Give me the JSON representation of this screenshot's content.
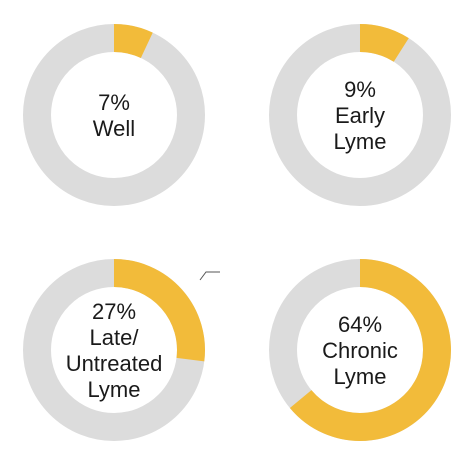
{
  "chart_data": [
    {
      "type": "pie",
      "style": "donut",
      "value_percent": 7,
      "value_label": "7%",
      "category_lines": [
        "Well"
      ],
      "colors": {
        "highlight": "#f2bb3a",
        "remainder": "#dcdcdc"
      }
    },
    {
      "type": "pie",
      "style": "donut",
      "value_percent": 9,
      "value_label": "9%",
      "category_lines": [
        "Early",
        "Lyme"
      ],
      "colors": {
        "highlight": "#f2bb3a",
        "remainder": "#dcdcdc"
      }
    },
    {
      "type": "pie",
      "style": "donut",
      "value_percent": 27,
      "value_label": "27%",
      "category_lines": [
        "Late/",
        "Untreated",
        "Lyme"
      ],
      "colors": {
        "highlight": "#f2bb3a",
        "remainder": "#dcdcdc"
      }
    },
    {
      "type": "pie",
      "style": "donut",
      "value_percent": 64,
      "value_label": "64%",
      "category_lines": [
        "Chronic",
        "Lyme"
      ],
      "colors": {
        "highlight": "#f2bb3a",
        "remainder": "#dcdcdc"
      }
    }
  ]
}
